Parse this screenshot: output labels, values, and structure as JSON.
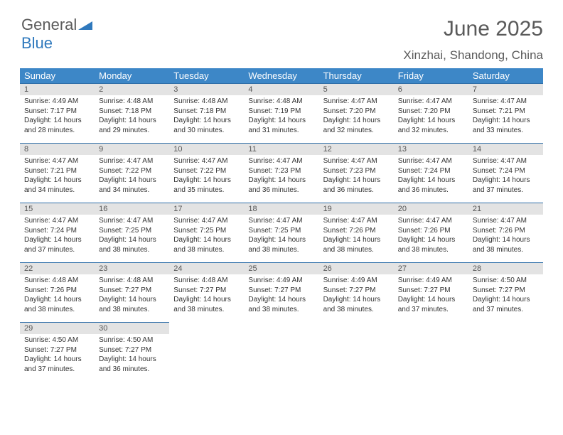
{
  "logo": {
    "word1": "General",
    "word2": "Blue"
  },
  "title": "June 2025",
  "location": "Xinzhai, Shandong, China",
  "daysOfWeek": [
    "Sunday",
    "Monday",
    "Tuesday",
    "Wednesday",
    "Thursday",
    "Friday",
    "Saturday"
  ],
  "colors": {
    "header_bg": "#3d87c7",
    "header_text": "#ffffff",
    "daynum_bg": "#e3e3e3",
    "daynum_border": "#2f6ea8",
    "title_text": "#5a5a5a",
    "body_text": "#333333",
    "logo_gray": "#5b5b5b",
    "logo_blue": "#2f79bd"
  },
  "weeks": [
    [
      {
        "n": "1",
        "sr": "4:49 AM",
        "ss": "7:17 PM",
        "dl": "14 hours and 28 minutes."
      },
      {
        "n": "2",
        "sr": "4:48 AM",
        "ss": "7:18 PM",
        "dl": "14 hours and 29 minutes."
      },
      {
        "n": "3",
        "sr": "4:48 AM",
        "ss": "7:18 PM",
        "dl": "14 hours and 30 minutes."
      },
      {
        "n": "4",
        "sr": "4:48 AM",
        "ss": "7:19 PM",
        "dl": "14 hours and 31 minutes."
      },
      {
        "n": "5",
        "sr": "4:47 AM",
        "ss": "7:20 PM",
        "dl": "14 hours and 32 minutes."
      },
      {
        "n": "6",
        "sr": "4:47 AM",
        "ss": "7:20 PM",
        "dl": "14 hours and 32 minutes."
      },
      {
        "n": "7",
        "sr": "4:47 AM",
        "ss": "7:21 PM",
        "dl": "14 hours and 33 minutes."
      }
    ],
    [
      {
        "n": "8",
        "sr": "4:47 AM",
        "ss": "7:21 PM",
        "dl": "14 hours and 34 minutes."
      },
      {
        "n": "9",
        "sr": "4:47 AM",
        "ss": "7:22 PM",
        "dl": "14 hours and 34 minutes."
      },
      {
        "n": "10",
        "sr": "4:47 AM",
        "ss": "7:22 PM",
        "dl": "14 hours and 35 minutes."
      },
      {
        "n": "11",
        "sr": "4:47 AM",
        "ss": "7:23 PM",
        "dl": "14 hours and 36 minutes."
      },
      {
        "n": "12",
        "sr": "4:47 AM",
        "ss": "7:23 PM",
        "dl": "14 hours and 36 minutes."
      },
      {
        "n": "13",
        "sr": "4:47 AM",
        "ss": "7:24 PM",
        "dl": "14 hours and 36 minutes."
      },
      {
        "n": "14",
        "sr": "4:47 AM",
        "ss": "7:24 PM",
        "dl": "14 hours and 37 minutes."
      }
    ],
    [
      {
        "n": "15",
        "sr": "4:47 AM",
        "ss": "7:24 PM",
        "dl": "14 hours and 37 minutes."
      },
      {
        "n": "16",
        "sr": "4:47 AM",
        "ss": "7:25 PM",
        "dl": "14 hours and 38 minutes."
      },
      {
        "n": "17",
        "sr": "4:47 AM",
        "ss": "7:25 PM",
        "dl": "14 hours and 38 minutes."
      },
      {
        "n": "18",
        "sr": "4:47 AM",
        "ss": "7:25 PM",
        "dl": "14 hours and 38 minutes."
      },
      {
        "n": "19",
        "sr": "4:47 AM",
        "ss": "7:26 PM",
        "dl": "14 hours and 38 minutes."
      },
      {
        "n": "20",
        "sr": "4:47 AM",
        "ss": "7:26 PM",
        "dl": "14 hours and 38 minutes."
      },
      {
        "n": "21",
        "sr": "4:47 AM",
        "ss": "7:26 PM",
        "dl": "14 hours and 38 minutes."
      }
    ],
    [
      {
        "n": "22",
        "sr": "4:48 AM",
        "ss": "7:26 PM",
        "dl": "14 hours and 38 minutes."
      },
      {
        "n": "23",
        "sr": "4:48 AM",
        "ss": "7:27 PM",
        "dl": "14 hours and 38 minutes."
      },
      {
        "n": "24",
        "sr": "4:48 AM",
        "ss": "7:27 PM",
        "dl": "14 hours and 38 minutes."
      },
      {
        "n": "25",
        "sr": "4:49 AM",
        "ss": "7:27 PM",
        "dl": "14 hours and 38 minutes."
      },
      {
        "n": "26",
        "sr": "4:49 AM",
        "ss": "7:27 PM",
        "dl": "14 hours and 38 minutes."
      },
      {
        "n": "27",
        "sr": "4:49 AM",
        "ss": "7:27 PM",
        "dl": "14 hours and 37 minutes."
      },
      {
        "n": "28",
        "sr": "4:50 AM",
        "ss": "7:27 PM",
        "dl": "14 hours and 37 minutes."
      }
    ],
    [
      {
        "n": "29",
        "sr": "4:50 AM",
        "ss": "7:27 PM",
        "dl": "14 hours and 37 minutes."
      },
      {
        "n": "30",
        "sr": "4:50 AM",
        "ss": "7:27 PM",
        "dl": "14 hours and 36 minutes."
      },
      null,
      null,
      null,
      null,
      null
    ]
  ]
}
